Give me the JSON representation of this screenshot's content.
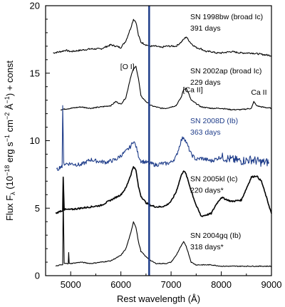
{
  "chart_data": {
    "type": "line",
    "xlabel": "Rest wavelength (Å)",
    "ylabel": "Flux F",
    "ylabel_sub": "λ",
    "ylabel_units": " (10",
    "ylabel_exp1": "−18",
    "ylabel_mid": " erg s",
    "ylabel_exp2": "−1",
    "ylabel_mid2": " cm",
    "ylabel_exp3": "−2",
    "ylabel_mid3": " Å",
    "ylabel_exp4": "−1",
    "ylabel_end": ") + const",
    "xlim": [
      4500,
      9000
    ],
    "ylim": [
      0,
      20
    ],
    "x_ticks": [
      5000,
      6000,
      7000,
      8000,
      9000
    ],
    "y_ticks": [
      0,
      5,
      10,
      15,
      20
    ],
    "grid": false,
    "colors": {
      "black": "#000000",
      "blue": "#1f3d8a"
    },
    "vertical_line": {
      "x": 6563,
      "color": "#1f3d8a"
    },
    "line_labels": [
      {
        "text": "[O I]",
        "x": 6300,
        "y": 15.3
      },
      {
        "text": "[Ca II]",
        "x": 7291,
        "y": 13.6
      },
      {
        "text": "Ca II",
        "x": 8650,
        "y": 13.4
      }
    ],
    "series": [
      {
        "name": "SN 1998bw (broad Ic)",
        "days": "391 days",
        "color": "#000000",
        "x": [
          4650,
          4800,
          4900,
          5000,
          5200,
          5400,
          5600,
          5800,
          6000,
          6100,
          6200,
          6250,
          6300,
          6350,
          6400,
          6500,
          6600,
          6700,
          6800,
          6900,
          7000,
          7100,
          7200,
          7300,
          7400,
          7500,
          7600,
          7700,
          7800,
          7900,
          8000,
          8200,
          8400,
          8600,
          8800,
          9000
        ],
        "y": [
          16.5,
          16.6,
          16.7,
          16.6,
          16.7,
          16.8,
          16.8,
          17.1,
          16.9,
          17.4,
          18.4,
          19.0,
          18.8,
          17.8,
          17.3,
          17.1,
          17.0,
          17.0,
          16.9,
          17.0,
          17.0,
          17.0,
          17.3,
          17.7,
          17.2,
          16.9,
          16.8,
          16.6,
          16.6,
          16.5,
          16.5,
          16.6,
          16.5,
          16.5,
          16.4,
          16.3
        ]
      },
      {
        "name": "SN 2002ap (broad Ic)",
        "days": "229 days",
        "color": "#000000",
        "x": [
          4800,
          5000,
          5200,
          5400,
          5600,
          5800,
          5900,
          6000,
          6100,
          6200,
          6250,
          6300,
          6350,
          6400,
          6500,
          6600,
          6700,
          6800,
          6900,
          7000,
          7100,
          7200,
          7250,
          7300,
          7350,
          7400,
          7600,
          7800,
          8000,
          8200,
          8400,
          8600,
          8650,
          8700,
          8800,
          9000
        ],
        "y": [
          12.3,
          12.4,
          12.5,
          12.4,
          12.5,
          12.6,
          12.9,
          12.7,
          13.2,
          14.8,
          15.3,
          15.5,
          14.6,
          13.3,
          12.9,
          12.6,
          12.5,
          12.4,
          12.4,
          12.5,
          12.6,
          13.2,
          13.8,
          13.9,
          13.5,
          13.0,
          12.5,
          12.4,
          12.4,
          12.3,
          12.3,
          12.4,
          12.9,
          12.6,
          12.5,
          12.4
        ]
      },
      {
        "name": "SN 2008D (Ib)",
        "days": "363 days",
        "color": "#1f3d8a",
        "x": [
          4720,
          4800,
          4830,
          4840,
          4860,
          4900,
          5000,
          5200,
          5400,
          5500,
          5700,
          5900,
          6000,
          6100,
          6200,
          6250,
          6300,
          6350,
          6400,
          6500,
          6600,
          6700,
          6800,
          6900,
          7000,
          7100,
          7200,
          7250,
          7300,
          7400,
          7500,
          7600,
          7800,
          8000,
          8200,
          8400,
          8600,
          8800,
          8950
        ],
        "y": [
          7.8,
          8.1,
          8.0,
          12.6,
          8.3,
          8.3,
          8.3,
          8.2,
          8.6,
          8.5,
          8.4,
          8.6,
          8.9,
          9.2,
          9.6,
          10.0,
          9.6,
          8.9,
          8.5,
          8.4,
          8.3,
          8.2,
          8.3,
          8.3,
          8.4,
          8.8,
          10.0,
          10.3,
          9.9,
          9.0,
          8.6,
          8.7,
          8.5,
          8.8,
          8.6,
          8.5,
          8.6,
          8.4,
          8.4
        ]
      },
      {
        "name": "SN 2005kl (Ic)",
        "days": "220 days*",
        "color": "#000000",
        "x": [
          4700,
          4800,
          4840,
          4850,
          4870,
          5000,
          5200,
          5400,
          5600,
          5800,
          6000,
          6100,
          6200,
          6250,
          6300,
          6350,
          6400,
          6500,
          6600,
          6700,
          6800,
          6900,
          7000,
          7100,
          7200,
          7250,
          7300,
          7400,
          7500,
          7600,
          7800,
          7900,
          8000,
          8200,
          8400,
          8600,
          8700,
          8800,
          8900,
          9000
        ],
        "y": [
          4.6,
          4.8,
          4.8,
          7.3,
          4.9,
          4.9,
          5.0,
          5.1,
          5.2,
          5.6,
          6.0,
          6.5,
          7.5,
          8.1,
          7.8,
          6.6,
          5.9,
          5.4,
          5.2,
          5.1,
          5.1,
          5.2,
          5.5,
          6.2,
          7.4,
          7.8,
          7.5,
          6.3,
          5.2,
          4.4,
          4.6,
          5.3,
          5.8,
          5.5,
          5.6,
          7.3,
          7.4,
          7.0,
          5.8,
          4.6
        ]
      },
      {
        "name": "SN 2004gq (Ib)",
        "days": "318 days*",
        "color": "#000000",
        "x": [
          4700,
          4800,
          4840,
          4850,
          4870,
          4950,
          4960,
          4970,
          5000,
          5200,
          5400,
          5600,
          5800,
          5900,
          6000,
          6100,
          6200,
          6250,
          6300,
          6350,
          6400,
          6500,
          6600,
          6700,
          6800,
          6900,
          7000,
          7100,
          7200,
          7250,
          7300,
          7350,
          7400,
          7500,
          7600,
          7800,
          8000,
          8200,
          8400,
          8600,
          8800,
          9000
        ],
        "y": [
          0.7,
          0.8,
          0.8,
          5.9,
          0.9,
          0.9,
          1.7,
          0.9,
          0.9,
          1.0,
          0.9,
          1.0,
          1.1,
          1.3,
          1.5,
          2.0,
          3.2,
          4.0,
          3.6,
          2.5,
          1.8,
          1.4,
          1.1,
          0.9,
          0.9,
          0.9,
          1.0,
          1.5,
          2.2,
          2.5,
          2.2,
          1.6,
          1.0,
          0.8,
          0.8,
          0.8,
          0.7,
          0.7,
          0.7,
          0.7,
          0.7,
          0.7
        ]
      }
    ]
  }
}
